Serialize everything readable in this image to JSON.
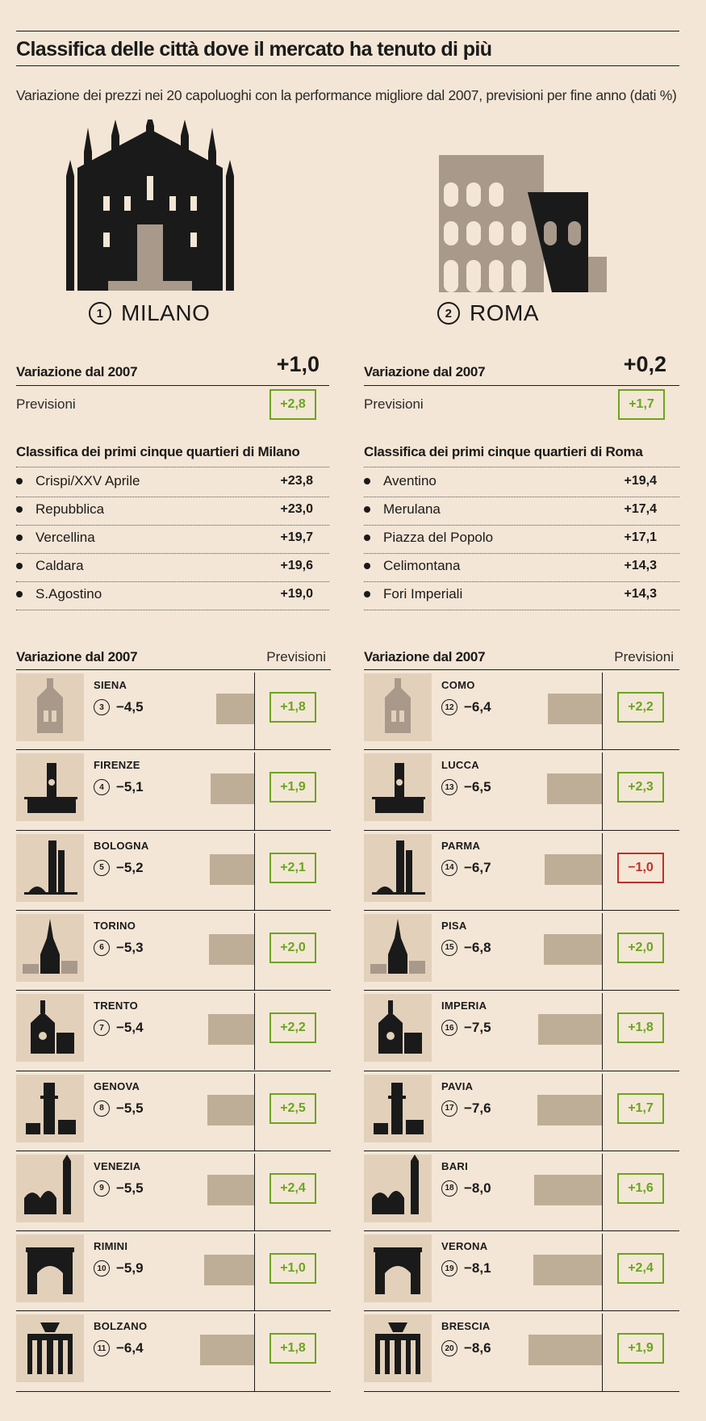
{
  "header": {
    "title": "Classifica delle città dove il mercato ha tenuto di più",
    "subtitle": "Variazione dei prezzi nei 20 capoluoghi con la performance migliore dal 2007, previsioni per fine anno (dati %)"
  },
  "labels": {
    "variazione": "Variazione dal 2007",
    "previsioni": "Previsioni"
  },
  "top_cities": [
    {
      "rank": "1",
      "name": "MILANO",
      "variazione": "+1,0",
      "previsione": "+2,8",
      "quartieri_title": "Classifica dei primi cinque quartieri di Milano",
      "quartieri": [
        {
          "name": "Crispi/XXV Aprile",
          "value": "+23,8"
        },
        {
          "name": "Repubblica",
          "value": "+23,0"
        },
        {
          "name": "Vercellina",
          "value": "+19,7"
        },
        {
          "name": "Caldara",
          "value": "+19,6"
        },
        {
          "name": "S.Agostino",
          "value": "+19,0"
        }
      ]
    },
    {
      "rank": "2",
      "name": "ROMA",
      "variazione": "+0,2",
      "previsione": "+1,7",
      "quartieri_title": "Classifica dei primi cinque quartieri di Roma",
      "quartieri": [
        {
          "name": "Aventino",
          "value": "+19,4"
        },
        {
          "name": "Merulana",
          "value": "+17,4"
        },
        {
          "name": "Piazza del Popolo",
          "value": "+17,1"
        },
        {
          "name": "Celimontana",
          "value": "+14,3"
        },
        {
          "name": "Fori Imperiali",
          "value": "+14,3"
        }
      ]
    }
  ],
  "chart_data": {
    "type": "bar",
    "title": "Variazione dal 2007",
    "categories": [
      "SIENA",
      "FIRENZE",
      "BOLOGNA",
      "TORINO",
      "TRENTO",
      "GENOVA",
      "VENEZIA",
      "RIMINI",
      "BOLZANO",
      "COMO",
      "LUCCA",
      "PARMA",
      "PISA",
      "IMPERIA",
      "PAVIA",
      "BARI",
      "VERONA",
      "BRESCIA"
    ],
    "ranks": [
      3,
      4,
      5,
      6,
      7,
      8,
      9,
      10,
      11,
      12,
      13,
      14,
      15,
      16,
      17,
      18,
      19,
      20
    ],
    "series": [
      {
        "name": "Variazione dal 2007",
        "values": [
          -4.5,
          -5.1,
          -5.2,
          -5.3,
          -5.4,
          -5.5,
          -5.5,
          -5.9,
          -6.4,
          -6.4,
          -6.5,
          -6.7,
          -6.8,
          -7.5,
          -7.6,
          -8.0,
          -8.1,
          -8.6
        ]
      },
      {
        "name": "Previsioni",
        "values": [
          1.8,
          1.9,
          2.1,
          2.0,
          2.2,
          2.5,
          2.4,
          1.0,
          1.8,
          2.2,
          2.3,
          -1.0,
          2.0,
          1.8,
          1.7,
          1.6,
          2.4,
          1.9
        ]
      }
    ],
    "value_labels": [
      "−4,5",
      "−5,1",
      "−5,2",
      "−5,3",
      "−5,4",
      "−5,5",
      "−5,5",
      "−5,9",
      "−6,4",
      "−6,4",
      "−6,5",
      "−6,7",
      "−6,8",
      "−7,5",
      "−7,6",
      "−8,0",
      "−8,1",
      "−8,6"
    ],
    "forecast_labels": [
      "+1,8",
      "+1,9",
      "+2,1",
      "+2,0",
      "+2,2",
      "+2,5",
      "+2,4",
      "+1,0",
      "+1,8",
      "+2,2",
      "+2,3",
      "−1,0",
      "+2,0",
      "+1,8",
      "+1,7",
      "+1,6",
      "+2,4",
      "+1,9"
    ],
    "icons": [
      "siena-duomo-icon",
      "firenze-palazzo-vecchio-icon",
      "bologna-towers-icon",
      "torino-mole-icon",
      "trento-duomo-icon",
      "genova-lanterna-icon",
      "venezia-san-marco-icon",
      "rimini-arco-icon",
      "bolzano-monument-icon",
      "como-tempio-icon",
      "lucca-duomo-icon",
      "parma-battistero-icon",
      "pisa-tower-icon",
      "imperia-duomo-icon",
      "pavia-ponte-icon",
      "bari-basilica-icon",
      "verona-arena-icon",
      "brescia-duomo-icon"
    ]
  },
  "colors": {
    "background": "#f4e6d6",
    "bar": "#bfae97",
    "positive": "#6aa51e",
    "negative": "#c0302a",
    "icon_dark": "#1a1a1a",
    "icon_light": "#a8998a"
  }
}
